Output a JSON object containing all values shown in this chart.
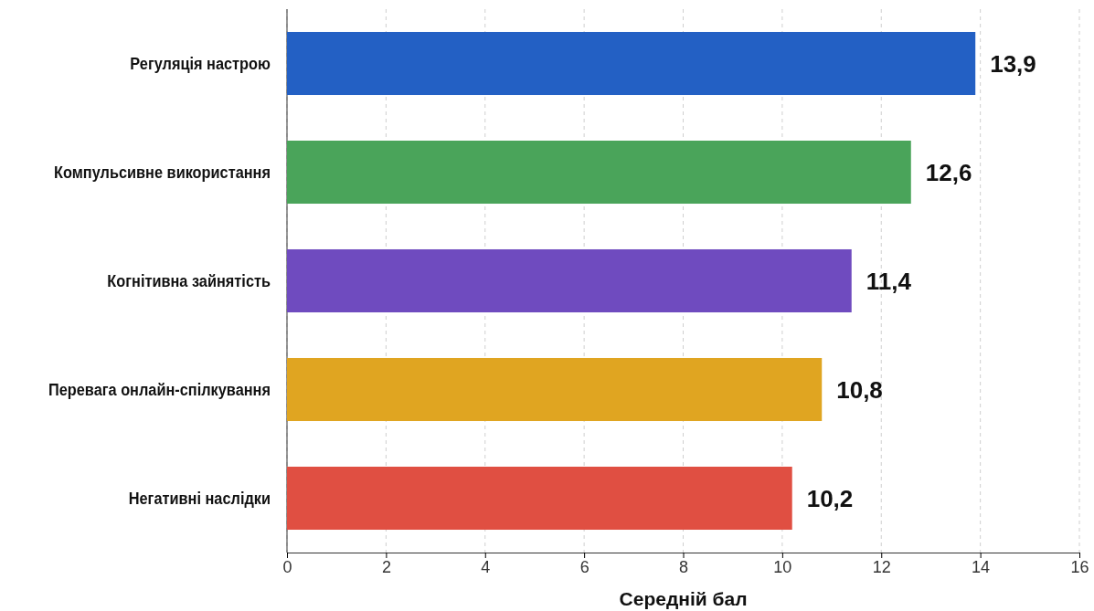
{
  "chart_data": {
    "type": "bar",
    "orientation": "horizontal",
    "xlabel": "Середній бал",
    "categories": [
      "Регуляція настрою",
      "Компульсивне використання",
      "Когнітивна зайнятість",
      "Перевага онлайн-спілкування",
      "Негативні наслідки"
    ],
    "values": [
      13.9,
      12.6,
      11.4,
      10.8,
      10.2
    ],
    "colors": [
      "#2360c4",
      "#4aa45a",
      "#6f4bbf",
      "#e0a521",
      "#e04f42"
    ],
    "xlim": [
      0,
      16
    ],
    "xticks": [
      0,
      2,
      4,
      6,
      8,
      10,
      12,
      14,
      16
    ],
    "grid": "x",
    "value_labels": [
      "13,9",
      "12,6",
      "11,4",
      "10,8",
      "10,2"
    ]
  }
}
